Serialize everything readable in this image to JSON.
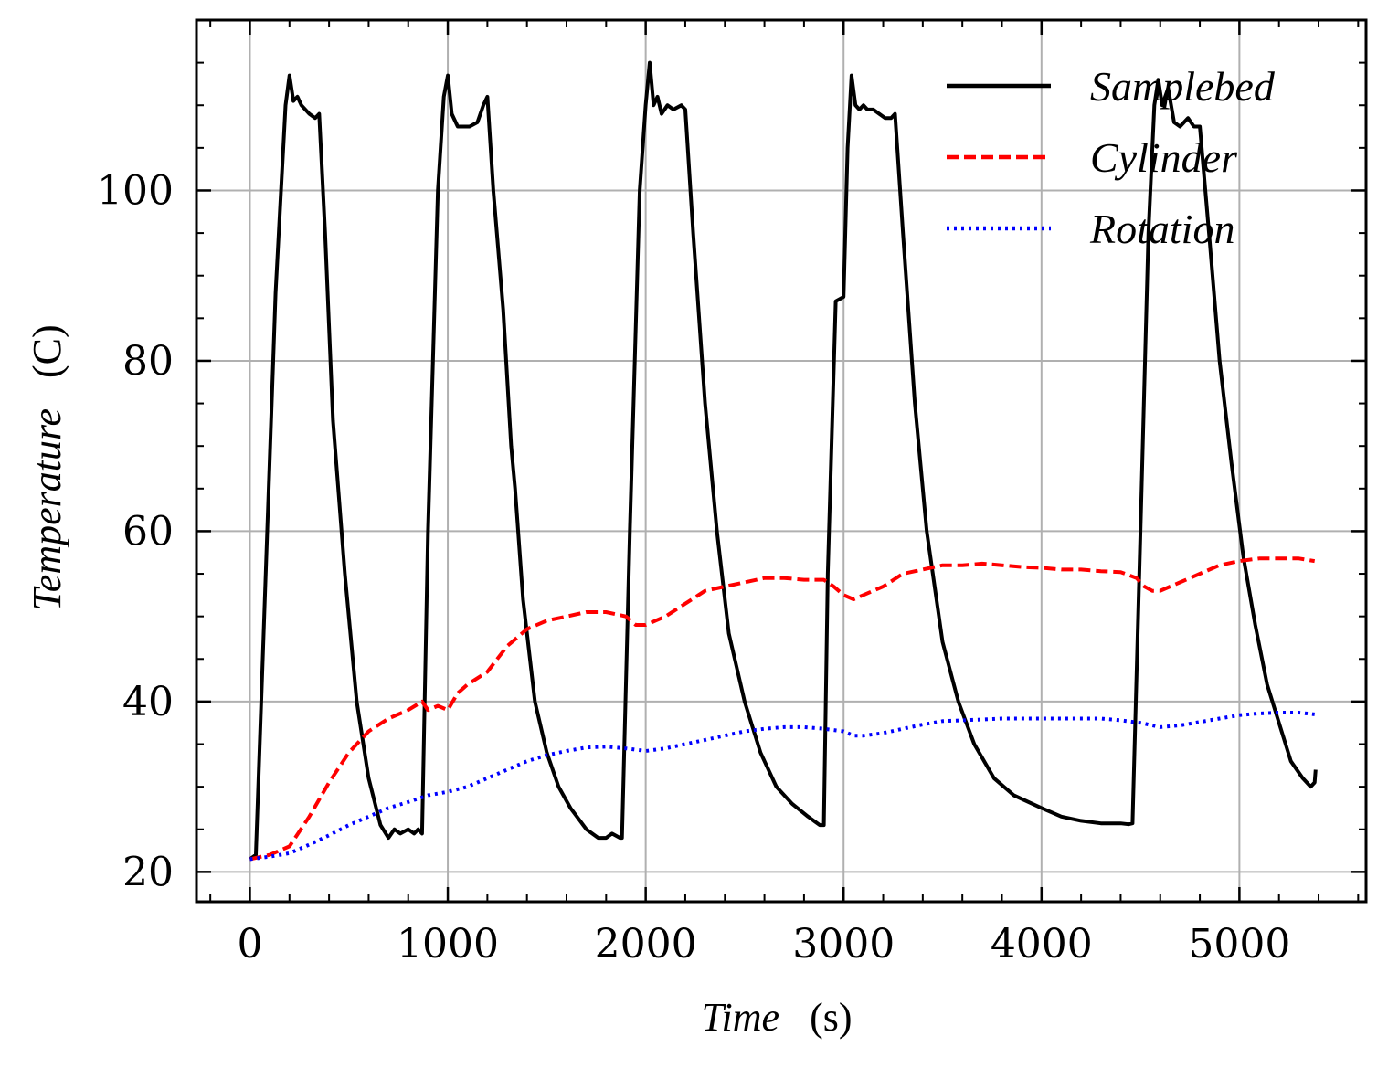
{
  "chart_data": {
    "type": "line",
    "title": "",
    "xlabel": {
      "name": "Time",
      "unit": "(s)"
    },
    "ylabel": {
      "name": "Temperature",
      "unit": "(C)"
    },
    "xlim": [
      -270,
      5640
    ],
    "ylim": [
      16.5,
      120
    ],
    "xticks": [
      0,
      1000,
      2000,
      3000,
      4000,
      5000
    ],
    "xtick_labels": [
      "0",
      "1000",
      "2000",
      "3000",
      "4000",
      "5000"
    ],
    "yticks": [
      20,
      40,
      60,
      80,
      100
    ],
    "ytick_labels": [
      "20",
      "40",
      "60",
      "80",
      "100"
    ],
    "grid": true,
    "legend_position": "top-right",
    "series": [
      {
        "name": "Samplebed",
        "color": "#000000",
        "style": "solid",
        "x": [
          0,
          30,
          80,
          130,
          180,
          200,
          220,
          240,
          260,
          300,
          330,
          350,
          380,
          420,
          480,
          540,
          600,
          660,
          700,
          730,
          760,
          800,
          830,
          850,
          870,
          900,
          950,
          980,
          1000,
          1020,
          1050,
          1080,
          1110,
          1150,
          1180,
          1200,
          1230,
          1280,
          1320,
          1340,
          1380,
          1440,
          1500,
          1560,
          1620,
          1700,
          1760,
          1800,
          1830,
          1870,
          1880,
          1920,
          1970,
          2000,
          2020,
          2040,
          2060,
          2080,
          2110,
          2140,
          2180,
          2200,
          2240,
          2300,
          2360,
          2420,
          2500,
          2580,
          2660,
          2740,
          2820,
          2880,
          2900,
          2920,
          2960,
          3000,
          3020,
          3040,
          3060,
          3080,
          3100,
          3120,
          3150,
          3180,
          3210,
          3240,
          3260,
          3300,
          3360,
          3420,
          3500,
          3580,
          3660,
          3760,
          3860,
          4000,
          4100,
          4200,
          4300,
          4400,
          4440,
          4460,
          4500,
          4540,
          4570,
          4590,
          4610,
          4640,
          4670,
          4700,
          4740,
          4770,
          4800,
          4850,
          4900,
          4960,
          5020,
          5080,
          5140,
          5200,
          5260,
          5320,
          5360,
          5380,
          5385
        ],
        "y": [
          21.5,
          22,
          55,
          88,
          110,
          113.5,
          110.5,
          111,
          110,
          109,
          108.5,
          109,
          95,
          73,
          55,
          40,
          31,
          25.5,
          24,
          25,
          24.5,
          25,
          24.5,
          25,
          24.5,
          60,
          100,
          111,
          113.5,
          109,
          107.5,
          107.5,
          107.5,
          108,
          110,
          111,
          100,
          86,
          70,
          65,
          52,
          40,
          34,
          30,
          27.5,
          25,
          24,
          24,
          24.5,
          24,
          24,
          60,
          100,
          110,
          115,
          110,
          111,
          109,
          110,
          109.5,
          110,
          109.5,
          95,
          75,
          60,
          48,
          40,
          34,
          30,
          28,
          26.5,
          25.5,
          25.5,
          55,
          87,
          87.5,
          105,
          113.5,
          110,
          109.5,
          110,
          109.5,
          109.5,
          109,
          108.5,
          108.5,
          109,
          95,
          75,
          60,
          47,
          40,
          35,
          31,
          29,
          27.5,
          26.5,
          26,
          25.7,
          25.7,
          25.6,
          25.7,
          60,
          95,
          110,
          113,
          110,
          112,
          108,
          107.5,
          108.5,
          107.5,
          107.5,
          94,
          80,
          68,
          57,
          49,
          42,
          37.5,
          33,
          31,
          30,
          30.5,
          32
        ]
      },
      {
        "name": "Cylinder",
        "color": "#ff0000",
        "style": "dashed",
        "x": [
          0,
          100,
          200,
          300,
          400,
          500,
          600,
          700,
          800,
          870,
          900,
          950,
          1000,
          1050,
          1100,
          1200,
          1300,
          1400,
          1500,
          1600,
          1700,
          1800,
          1900,
          1950,
          2000,
          2100,
          2200,
          2300,
          2400,
          2500,
          2600,
          2700,
          2800,
          2900,
          2950,
          3000,
          3050,
          3100,
          3200,
          3300,
          3400,
          3500,
          3600,
          3700,
          3800,
          3900,
          4000,
          4100,
          4200,
          4300,
          4400,
          4480,
          4520,
          4560,
          4600,
          4650,
          4700,
          4800,
          4900,
          5000,
          5100,
          5200,
          5300,
          5380
        ],
        "y": [
          21.5,
          22,
          23,
          26.5,
          30.5,
          34,
          36.5,
          38,
          39,
          40,
          39,
          39.5,
          39,
          41,
          42,
          43.5,
          46.5,
          48.5,
          49.5,
          50,
          50.5,
          50.5,
          50,
          49,
          49,
          50,
          51.5,
          53,
          53.5,
          54,
          54.5,
          54.5,
          54.3,
          54.3,
          53.5,
          52.5,
          52,
          52.5,
          53.5,
          55,
          55.5,
          56,
          56,
          56.2,
          56,
          55.8,
          55.7,
          55.5,
          55.5,
          55.3,
          55.2,
          54.5,
          53.5,
          53,
          53,
          53.5,
          54,
          55,
          56,
          56.5,
          56.8,
          56.8,
          56.8,
          56.5
        ]
      },
      {
        "name": "Rotation",
        "color": "#0000ff",
        "style": "dotted",
        "x": [
          0,
          100,
          200,
          300,
          400,
          500,
          600,
          700,
          800,
          900,
          1000,
          1100,
          1200,
          1300,
          1400,
          1500,
          1600,
          1700,
          1800,
          1900,
          2000,
          2100,
          2200,
          2300,
          2400,
          2500,
          2600,
          2700,
          2800,
          2900,
          3000,
          3050,
          3100,
          3200,
          3300,
          3400,
          3500,
          3600,
          3700,
          3800,
          3900,
          4000,
          4100,
          4200,
          4300,
          4400,
          4500,
          4600,
          4700,
          4800,
          4900,
          5000,
          5100,
          5200,
          5300,
          5380
        ],
        "y": [
          21.5,
          21.8,
          22.2,
          23.2,
          24.3,
          25.5,
          26.5,
          27.5,
          28.2,
          29.0,
          29.4,
          30.0,
          31.0,
          32.0,
          33.0,
          33.7,
          34.2,
          34.6,
          34.7,
          34.5,
          34.2,
          34.5,
          35.0,
          35.5,
          36.0,
          36.5,
          36.8,
          37.0,
          37.0,
          36.8,
          36.5,
          36.0,
          36.0,
          36.3,
          36.8,
          37.3,
          37.7,
          37.8,
          37.9,
          38.0,
          38.0,
          38.0,
          38.0,
          38.0,
          38.0,
          37.8,
          37.5,
          37.0,
          37.2,
          37.6,
          38.0,
          38.4,
          38.6,
          38.7,
          38.7,
          38.5
        ]
      }
    ]
  }
}
